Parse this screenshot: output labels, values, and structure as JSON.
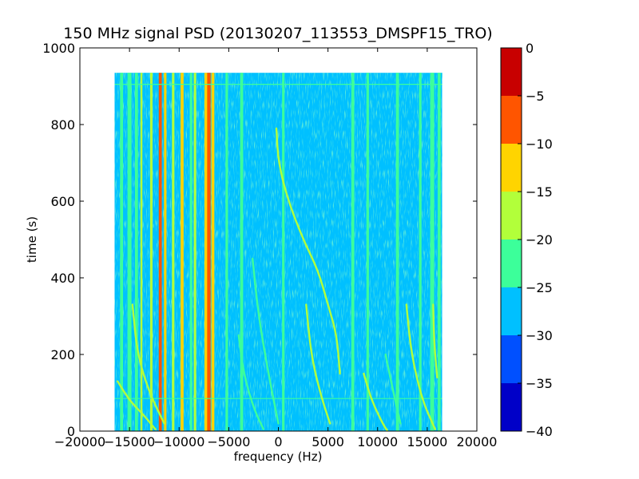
{
  "chart_data": {
    "type": "heatmap",
    "title": "150 MHz signal PSD (20130207_113553_DMSPF15_TRO)",
    "xlabel": "frequency (Hz)",
    "ylabel": "time (s)",
    "xlim": [
      -20000,
      20000
    ],
    "ylim": [
      0,
      1000
    ],
    "x_ticks": [
      -20000,
      -15000,
      -10000,
      -5000,
      0,
      5000,
      10000,
      15000,
      20000
    ],
    "y_ticks": [
      0,
      200,
      400,
      600,
      800,
      1000
    ],
    "data_extent": {
      "x": [
        -16500,
        16500
      ],
      "y": [
        0,
        935
      ]
    },
    "background_level": -27,
    "colorbar": {
      "levels": [
        -40,
        -35,
        -30,
        -25,
        -20,
        -15,
        -10,
        -5,
        0
      ],
      "colors": [
        "#0000c8",
        "#0050ff",
        "#00c0ff",
        "#3cff9a",
        "#b2ff3a",
        "#ffd400",
        "#ff5500",
        "#c80000"
      ]
    },
    "vertical_lines": [
      {
        "x": -15800,
        "level": -22,
        "width_hz": 300
      },
      {
        "x": -15000,
        "level": -22,
        "width_hz": 400
      },
      {
        "x": -14300,
        "level": -22,
        "width_hz": 300
      },
      {
        "x": -13800,
        "level": -20,
        "width_hz": 200
      },
      {
        "x": -12800,
        "level": -17,
        "width_hz": 250
      },
      {
        "x": -11900,
        "level": -7,
        "width_hz": 300
      },
      {
        "x": -11400,
        "level": -12,
        "width_hz": 250
      },
      {
        "x": -10600,
        "level": -17,
        "width_hz": 250
      },
      {
        "x": -9700,
        "level": -12,
        "width_hz": 300
      },
      {
        "x": -8800,
        "level": -22,
        "width_hz": 250
      },
      {
        "x": -8400,
        "level": -17,
        "width_hz": 250
      },
      {
        "x": -7300,
        "level": -12,
        "width_hz": 300
      },
      {
        "x": -7000,
        "level": -7,
        "width_hz": 350
      },
      {
        "x": -6600,
        "level": -12,
        "width_hz": 300
      },
      {
        "x": -5200,
        "level": -22,
        "width_hz": 250
      },
      {
        "x": -3700,
        "level": -22,
        "width_hz": 300
      },
      {
        "x": 500,
        "level": -22,
        "width_hz": 250
      },
      {
        "x": 7500,
        "level": -22,
        "width_hz": 300
      },
      {
        "x": 9000,
        "level": -22,
        "width_hz": 250
      },
      {
        "x": 12000,
        "level": -22,
        "width_hz": 300
      },
      {
        "x": 14300,
        "level": -22,
        "width_hz": 250
      },
      {
        "x": 15500,
        "level": -22,
        "width_hz": 400
      },
      {
        "x": 16200,
        "level": -22,
        "width_hz": 300
      }
    ],
    "curved_tracks": [
      {
        "level": -17,
        "points": [
          [
            -200,
            790
          ],
          [
            0,
            700
          ],
          [
            1000,
            600
          ],
          [
            2500,
            500
          ],
          [
            4000,
            420
          ],
          [
            5000,
            330
          ],
          [
            5900,
            250
          ],
          [
            6200,
            150
          ]
        ]
      },
      {
        "level": -17,
        "points": [
          [
            -16200,
            130
          ],
          [
            -15000,
            80
          ],
          [
            -13500,
            40
          ],
          [
            -12400,
            5
          ]
        ]
      },
      {
        "level": -17,
        "points": [
          [
            -14700,
            330
          ],
          [
            -14200,
            200
          ],
          [
            -13000,
            100
          ],
          [
            -11500,
            20
          ]
        ]
      },
      {
        "level": -17,
        "points": [
          [
            2800,
            330
          ],
          [
            3300,
            200
          ],
          [
            4200,
            100
          ],
          [
            5200,
            20
          ]
        ]
      },
      {
        "level": -22,
        "points": [
          [
            -4000,
            250
          ],
          [
            -3500,
            150
          ],
          [
            -2500,
            60
          ],
          [
            -1500,
            5
          ]
        ]
      },
      {
        "level": -17,
        "points": [
          [
            8600,
            150
          ],
          [
            9400,
            80
          ],
          [
            10500,
            20
          ],
          [
            11000,
            0
          ]
        ]
      },
      {
        "level": -17,
        "points": [
          [
            12900,
            330
          ],
          [
            13400,
            200
          ],
          [
            14500,
            80
          ],
          [
            15800,
            5
          ]
        ]
      },
      {
        "level": -17,
        "points": [
          [
            15600,
            330
          ],
          [
            15700,
            230
          ],
          [
            16000,
            140
          ]
        ]
      },
      {
        "level": -22,
        "points": [
          [
            10800,
            200
          ],
          [
            11600,
            100
          ],
          [
            12300,
            20
          ]
        ]
      },
      {
        "level": -22,
        "points": [
          [
            -2600,
            450
          ],
          [
            -2000,
            300
          ],
          [
            -1000,
            150
          ],
          [
            0,
            20
          ]
        ]
      }
    ],
    "horizontal_lines": [
      {
        "y": 905,
        "level": -22
      },
      {
        "y": 85,
        "level": -22
      }
    ]
  }
}
